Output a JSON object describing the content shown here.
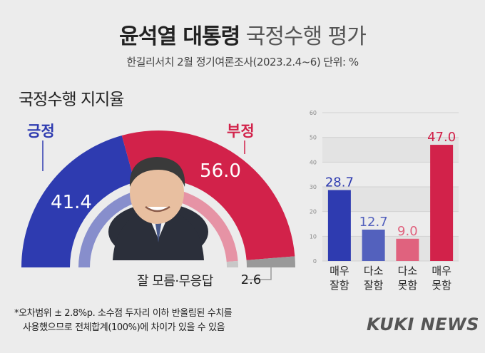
{
  "title_bold": "윤석열 대통령",
  "title_light": "국정수행 평가",
  "subtitle": "한길리서치 2월 정기여론조사(2023.2.4~6) 단위: %",
  "section_title": "국정수행 지지율",
  "footnote_1": "*오차범위 ± 2.8%p. 소수점 두자리 이하 반올림된 수치를",
  "footnote_2": "사용했으므로 전체합계(100%)에 차이가 있을 수 있음",
  "logo": "KUKI NEWS",
  "colors": {
    "positive": "#2e3bb0",
    "negative": "#d2224a",
    "dont_know": "#999999",
    "bar_mild_pos": "#5361bd",
    "bar_mild_neg": "#e0627e"
  },
  "chart_data": [
    {
      "type": "pie",
      "title": "국정수행 지지율",
      "style": "semicircle-donut",
      "slices": [
        {
          "label": "긍정",
          "value": 41.4,
          "value_label": "41.4",
          "color": "#2e3bb0"
        },
        {
          "label": "부정",
          "value": 56.0,
          "value_label": "56.0",
          "color": "#d2224a"
        },
        {
          "label": "잘 모름·무응답",
          "value": 2.6,
          "value_label": "2.6",
          "color": "#999999"
        }
      ]
    },
    {
      "type": "bar",
      "categories": [
        "매우 잘함",
        "다소 잘함",
        "다소 못함",
        "매우 못함"
      ],
      "category_lines": [
        [
          "매우",
          "잘함"
        ],
        [
          "다소",
          "잘함"
        ],
        [
          "다소",
          "못함"
        ],
        [
          "매우",
          "못함"
        ]
      ],
      "values": [
        28.7,
        12.7,
        9.0,
        47.0
      ],
      "value_labels": [
        "28.7",
        "12.7",
        "9.0",
        "47.0"
      ],
      "colors": [
        "#2e3bb0",
        "#5361bd",
        "#e0627e",
        "#d2224a"
      ],
      "ylim": [
        0,
        60
      ],
      "yticks": [
        0,
        10,
        20,
        30,
        40,
        50,
        60
      ],
      "ytick_labels": [
        "0",
        "10",
        "20",
        "30",
        "40",
        "50",
        "60"
      ],
      "grid": true
    }
  ]
}
